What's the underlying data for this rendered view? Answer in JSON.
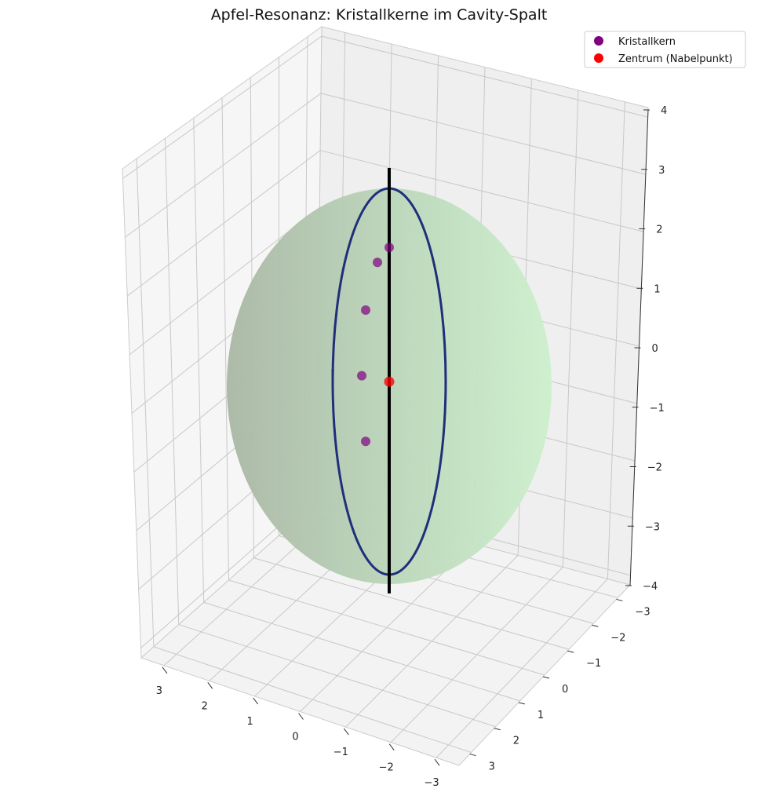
{
  "chart_data": {
    "type": "scatter",
    "title": "Apfel-Resonanz: Kristallkerne im Cavity-Spalt",
    "xlabel": "",
    "ylabel": "",
    "zlabel": "",
    "grid": true,
    "legend_position": "top-right",
    "x_ticks": [
      "3",
      "2",
      "1",
      "0",
      "−1",
      "−2",
      "−3"
    ],
    "y_ticks": [
      "−3",
      "−2",
      "−1",
      "0",
      "1",
      "2",
      "3"
    ],
    "z_ticks": [
      "4",
      "3",
      "2",
      "1",
      "0",
      "−1",
      "−2",
      "−3",
      "−4"
    ],
    "xlim": [
      -3,
      3
    ],
    "ylim": [
      -3,
      3
    ],
    "zlim": [
      -4,
      4
    ],
    "series": [
      {
        "name": "Kristallkern",
        "color": "#800080",
        "points": [
          {
            "x": 0.0,
            "y": 0.0,
            "z": 1.8
          },
          {
            "x": 0.15,
            "y": 0.0,
            "z": 1.55
          },
          {
            "x": 0.3,
            "y": 0.0,
            "z": 0.75
          },
          {
            "x": 0.35,
            "y": 0.0,
            "z": -0.35
          },
          {
            "x": 0.3,
            "y": 0.0,
            "z": -1.45
          }
        ]
      },
      {
        "name": "Zentrum (Nabelpunkt)",
        "color": "#ff0000",
        "points": [
          {
            "x": 0.0,
            "y": 0.0,
            "z": -0.45
          }
        ]
      }
    ],
    "surfaces": {
      "apple_color": "#90ee90",
      "cavity_ring_color": "#1a2a80",
      "axis_line_color": "#000000"
    }
  }
}
